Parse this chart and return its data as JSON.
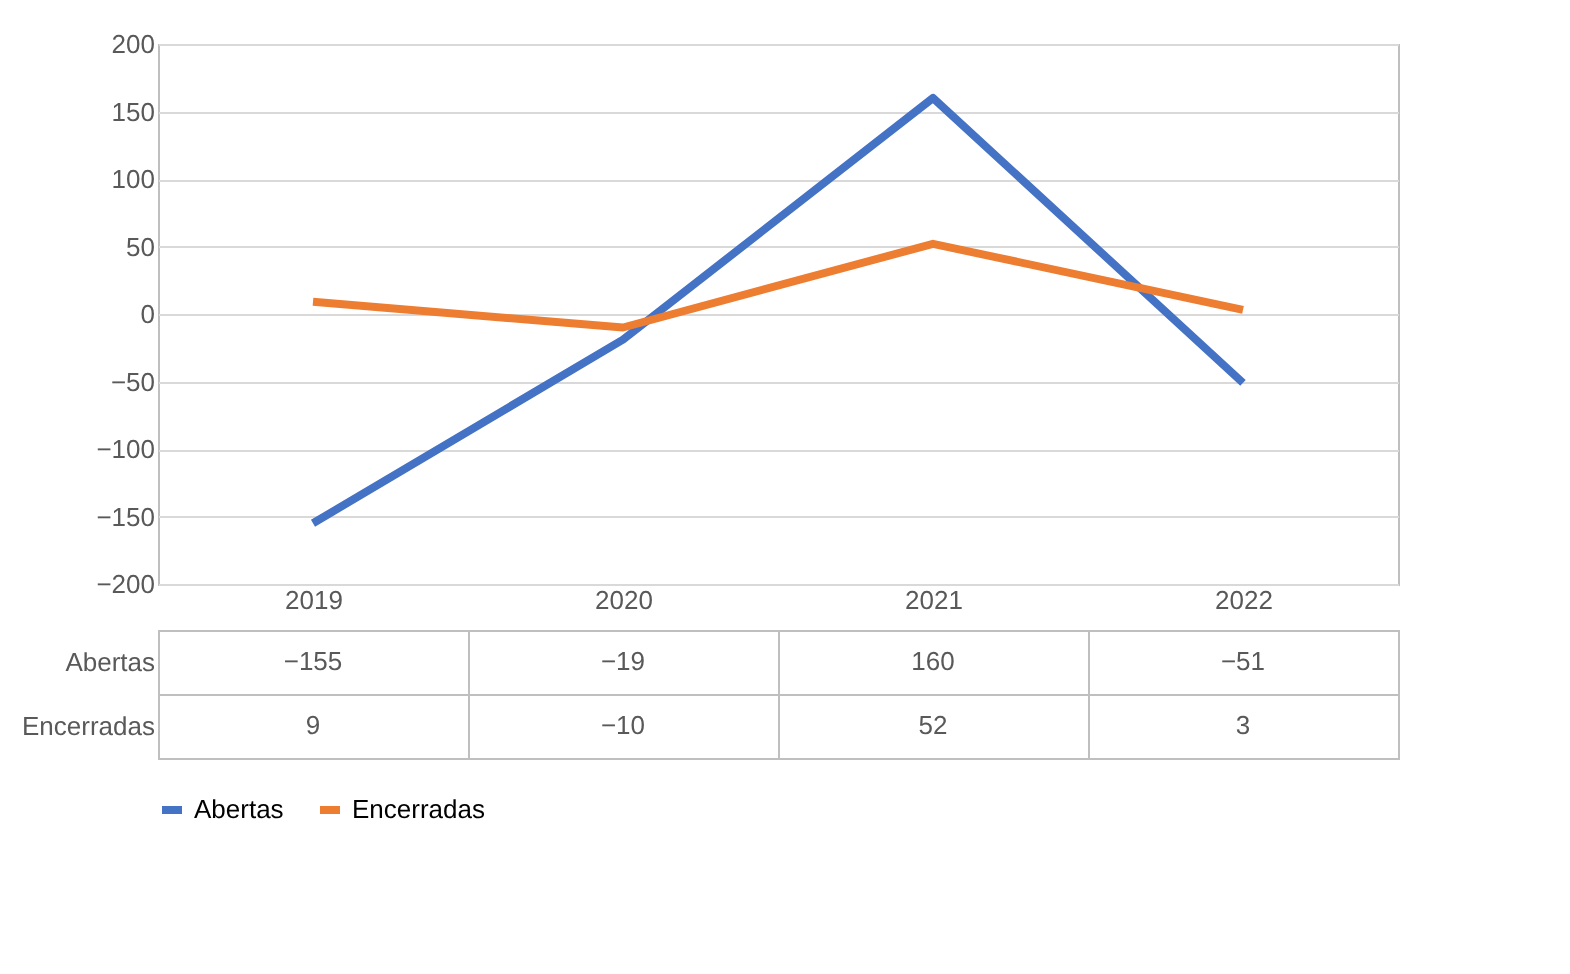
{
  "chart_data": {
    "type": "line",
    "categories": [
      "2019",
      "2020",
      "2021",
      "2022"
    ],
    "series": [
      {
        "name": "Abertas",
        "color": "#4472c4",
        "values": [
          -155,
          -19,
          160,
          -51
        ]
      },
      {
        "name": "Encerradas",
        "color": "#ed7d31",
        "values": [
          9,
          -10,
          52,
          3
        ]
      }
    ],
    "ylim": [
      -200,
      200
    ],
    "yticks": [
      -200,
      -150,
      -100,
      -50,
      0,
      50,
      100,
      150,
      200
    ],
    "grid": "y",
    "legend": "bottom",
    "data_labels": true,
    "marker": "none",
    "line_style": "solid"
  }
}
